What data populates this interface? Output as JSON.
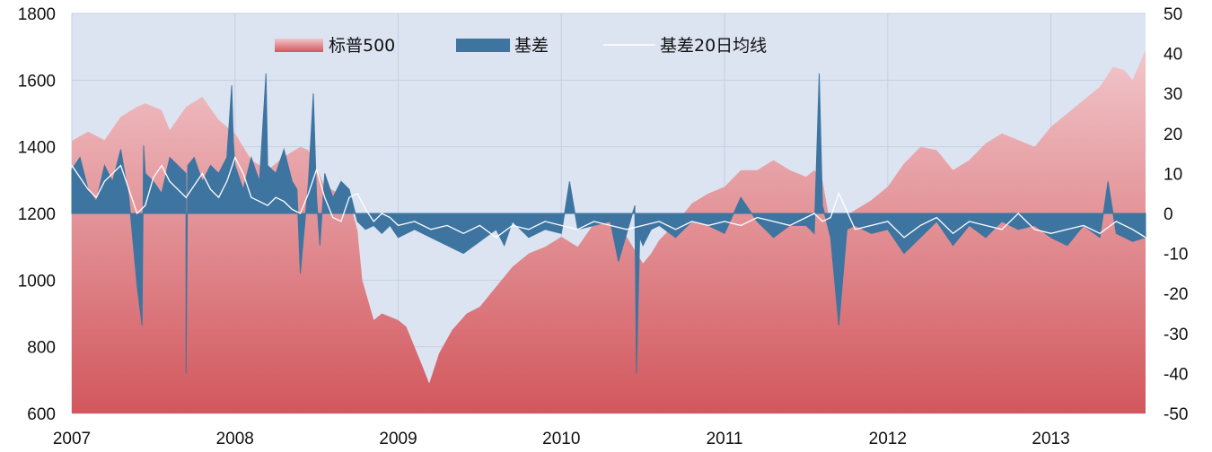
{
  "chart_data": {
    "type": "area",
    "title": "",
    "xlabel": "",
    "ylabel": "",
    "x_ticks": [
      "2007",
      "2008",
      "2009",
      "2010",
      "2011",
      "2012",
      "2013"
    ],
    "x_range": [
      2007.0,
      2013.58
    ],
    "y_left_range": [
      600,
      1800
    ],
    "y_left_ticks": [
      "600",
      "800",
      "1000",
      "1200",
      "1400",
      "1600",
      "1800"
    ],
    "y_right_range": [
      -50,
      50
    ],
    "y_right_ticks": [
      "-50",
      "-40",
      "-30",
      "-20",
      "-10",
      "0",
      "10",
      "20",
      "30",
      "40",
      "50"
    ],
    "grid": true,
    "legend_position": "top-center",
    "colors": {
      "plot_bg": "#dce4f2",
      "sp500_top": "#f1c6ca",
      "sp500_bottom": "#d2575d",
      "basis": "#3d74a0",
      "ma20": "#ffffff",
      "grid": "#c4cfe0"
    },
    "series": [
      {
        "name": "标普500",
        "axis": "left",
        "kind": "area",
        "x": [
          2007.0,
          2007.1,
          2007.2,
          2007.3,
          2007.4,
          2007.45,
          2007.55,
          2007.6,
          2007.7,
          2007.8,
          2007.9,
          2008.0,
          2008.1,
          2008.2,
          2008.3,
          2008.4,
          2008.45,
          2008.55,
          2008.6,
          2008.7,
          2008.75,
          2008.78,
          2008.85,
          2008.9,
          2009.0,
          2009.05,
          2009.1,
          2009.15,
          2009.19,
          2009.25,
          2009.33,
          2009.42,
          2009.5,
          2009.6,
          2009.7,
          2009.8,
          2009.9,
          2010.0,
          2010.1,
          2010.2,
          2010.3,
          2010.4,
          2010.5,
          2010.55,
          2010.6,
          2010.7,
          2010.8,
          2010.9,
          2011.0,
          2011.1,
          2011.2,
          2011.3,
          2011.4,
          2011.5,
          2011.55,
          2011.6,
          2011.65,
          2011.7,
          2011.8,
          2011.9,
          2012.0,
          2012.1,
          2012.2,
          2012.3,
          2012.4,
          2012.5,
          2012.6,
          2012.7,
          2012.8,
          2012.9,
          2013.0,
          2013.1,
          2013.2,
          2013.3,
          2013.38,
          2013.45,
          2013.5,
          2013.58
        ],
        "values": [
          1418,
          1445,
          1420,
          1490,
          1520,
          1530,
          1510,
          1450,
          1520,
          1550,
          1480,
          1440,
          1360,
          1330,
          1370,
          1400,
          1390,
          1280,
          1270,
          1240,
          1150,
          1000,
          880,
          900,
          880,
          860,
          800,
          740,
          690,
          780,
          850,
          900,
          920,
          980,
          1040,
          1080,
          1100,
          1130,
          1100,
          1170,
          1200,
          1130,
          1050,
          1080,
          1120,
          1170,
          1230,
          1260,
          1280,
          1330,
          1330,
          1360,
          1330,
          1310,
          1330,
          1300,
          1160,
          1180,
          1210,
          1240,
          1280,
          1350,
          1400,
          1390,
          1330,
          1360,
          1410,
          1440,
          1420,
          1400,
          1460,
          1500,
          1540,
          1580,
          1640,
          1630,
          1600,
          1690
        ]
      },
      {
        "name": "基差",
        "axis": "right",
        "kind": "area",
        "x": [
          2007.0,
          2007.05,
          2007.1,
          2007.15,
          2007.2,
          2007.25,
          2007.3,
          2007.35,
          2007.4,
          2007.43,
          2007.44,
          2007.45,
          2007.5,
          2007.55,
          2007.6,
          2007.65,
          2007.7,
          2007.7,
          2007.71,
          2007.75,
          2007.8,
          2007.85,
          2007.9,
          2007.95,
          2007.98,
          2007.99,
          2008.0,
          2008.05,
          2008.1,
          2008.15,
          2008.19,
          2008.2,
          2008.25,
          2008.3,
          2008.35,
          2008.38,
          2008.4,
          2008.45,
          2008.48,
          2008.5,
          2008.52,
          2008.55,
          2008.6,
          2008.65,
          2008.7,
          2008.75,
          2008.8,
          2008.85,
          2008.9,
          2008.95,
          2009.0,
          2009.1,
          2009.2,
          2009.3,
          2009.4,
          2009.5,
          2009.6,
          2009.65,
          2009.7,
          2009.8,
          2009.9,
          2010.0,
          2010.05,
          2010.1,
          2010.2,
          2010.3,
          2010.35,
          2010.4,
          2010.45,
          2010.46,
          2010.48,
          2010.5,
          2010.55,
          2010.6,
          2010.7,
          2010.8,
          2010.9,
          2011.0,
          2011.1,
          2011.2,
          2011.3,
          2011.4,
          2011.5,
          2011.55,
          2011.58,
          2011.6,
          2011.65,
          2011.7,
          2011.75,
          2011.8,
          2011.9,
          2012.0,
          2012.1,
          2012.2,
          2012.3,
          2012.4,
          2012.5,
          2012.6,
          2012.7,
          2012.8,
          2012.9,
          2013.0,
          2013.1,
          2013.2,
          2013.3,
          2013.35,
          2013.4,
          2013.5,
          2013.58
        ],
        "values": [
          11,
          14,
          6,
          3,
          12,
          8,
          16,
          4,
          -18,
          -28,
          17,
          10,
          8,
          5,
          14,
          12,
          10,
          -40,
          12,
          14,
          8,
          12,
          10,
          14,
          32,
          18,
          12,
          6,
          14,
          8,
          35,
          12,
          10,
          16,
          8,
          6,
          -15,
          8,
          30,
          4,
          -8,
          10,
          4,
          8,
          6,
          -2,
          -4,
          -3,
          -5,
          -3,
          -6,
          -4,
          -6,
          -8,
          -10,
          -7,
          -4,
          -8,
          -2,
          -6,
          -4,
          -5,
          8,
          -4,
          -3,
          -2,
          -12,
          -5,
          2,
          -40,
          -6,
          -8,
          -4,
          -3,
          -6,
          -2,
          -3,
          -5,
          4,
          -2,
          -6,
          -3,
          -3,
          -5,
          35,
          2,
          -6,
          -28,
          -4,
          -3,
          -5,
          -4,
          -10,
          -6,
          -2,
          -8,
          -3,
          -6,
          -2,
          -4,
          -3,
          -6,
          -8,
          -3,
          -6,
          8,
          -5,
          -7,
          -6
        ]
      },
      {
        "name": "基差20日均线",
        "axis": "right",
        "kind": "line",
        "x": [
          2007.0,
          2007.05,
          2007.1,
          2007.15,
          2007.2,
          2007.25,
          2007.3,
          2007.35,
          2007.4,
          2007.45,
          2007.5,
          2007.55,
          2007.6,
          2007.65,
          2007.7,
          2007.75,
          2007.8,
          2007.85,
          2007.9,
          2007.95,
          2008.0,
          2008.05,
          2008.1,
          2008.15,
          2008.2,
          2008.25,
          2008.3,
          2008.35,
          2008.4,
          2008.45,
          2008.5,
          2008.55,
          2008.6,
          2008.65,
          2008.7,
          2008.75,
          2008.8,
          2008.85,
          2008.9,
          2008.95,
          2009.0,
          2009.1,
          2009.2,
          2009.3,
          2009.4,
          2009.5,
          2009.6,
          2009.7,
          2009.8,
          2009.9,
          2010.0,
          2010.1,
          2010.2,
          2010.3,
          2010.4,
          2010.5,
          2010.6,
          2010.7,
          2010.8,
          2010.9,
          2011.0,
          2011.1,
          2011.2,
          2011.3,
          2011.4,
          2011.5,
          2011.55,
          2011.6,
          2011.65,
          2011.7,
          2011.8,
          2011.9,
          2012.0,
          2012.1,
          2012.2,
          2012.3,
          2012.4,
          2012.5,
          2012.6,
          2012.7,
          2012.8,
          2012.9,
          2013.0,
          2013.1,
          2013.2,
          2013.3,
          2013.4,
          2013.5,
          2013.58
        ],
        "values": [
          12,
          9,
          6,
          4,
          8,
          10,
          12,
          6,
          0,
          2,
          9,
          12,
          8,
          6,
          4,
          7,
          10,
          6,
          4,
          8,
          14,
          10,
          4,
          3,
          2,
          4,
          3,
          1,
          0,
          5,
          11,
          4,
          -1,
          -2,
          4,
          5,
          1,
          -2,
          0,
          -1,
          -3,
          -2,
          -4,
          -3,
          -5,
          -3,
          -6,
          -3,
          -4,
          -2,
          -3,
          -4,
          -2,
          -3,
          -4,
          -3,
          -2,
          -4,
          -2,
          -3,
          -2,
          -3,
          -1,
          -2,
          -3,
          -1,
          0,
          -2,
          -1,
          5,
          -4,
          -3,
          -2,
          -6,
          -3,
          -1,
          -5,
          -2,
          -3,
          -4,
          0,
          -4,
          -5,
          -4,
          -3,
          -5,
          -2,
          -4,
          -6
        ]
      }
    ]
  }
}
